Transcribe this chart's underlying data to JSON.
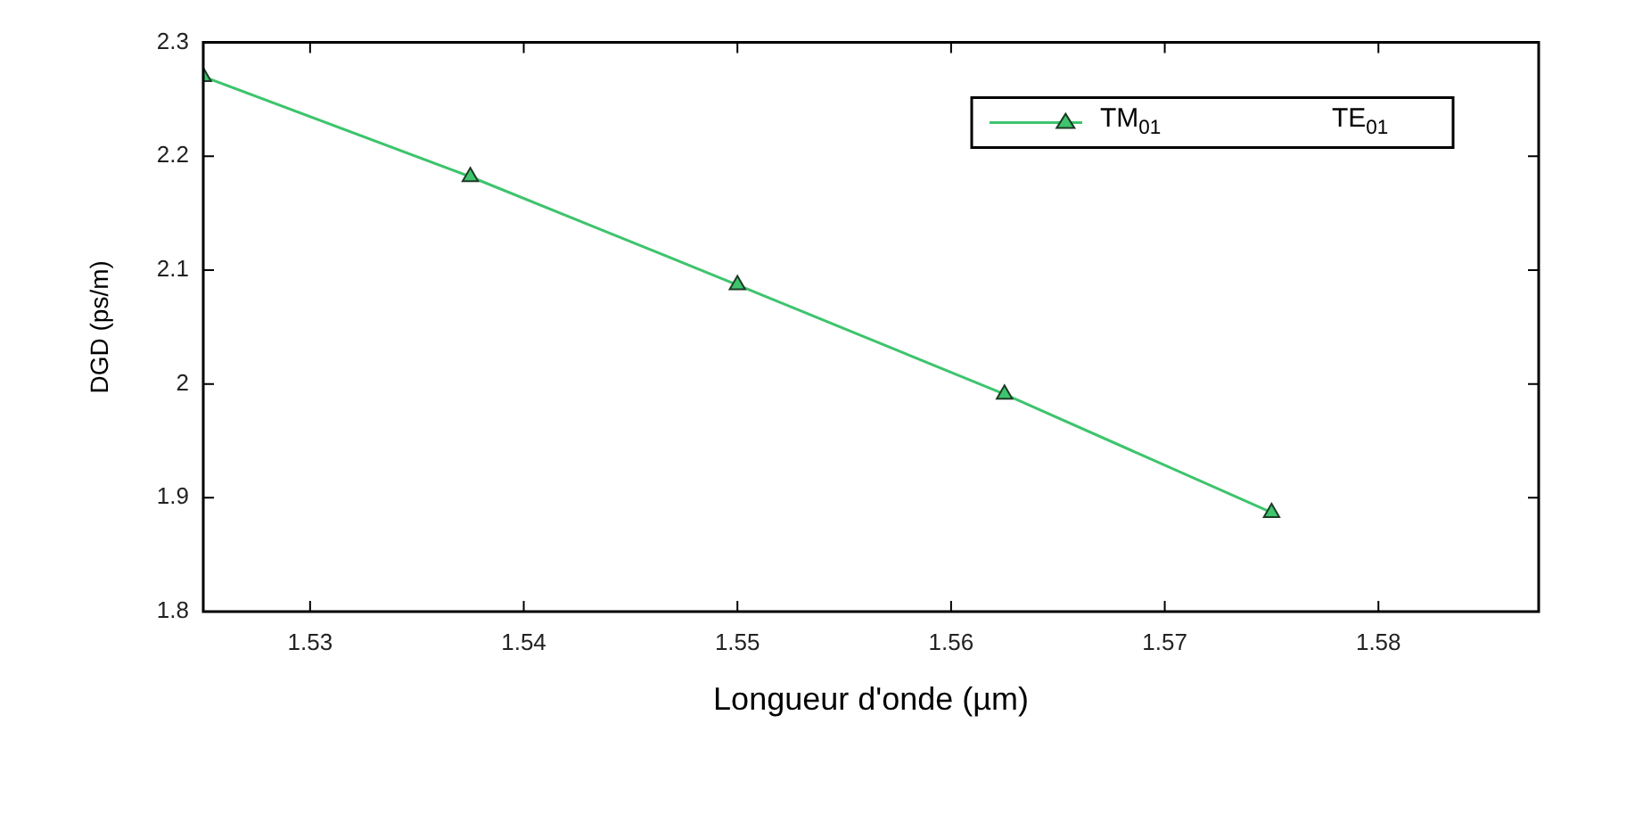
{
  "chart_data": {
    "type": "line",
    "xlabel": "Longueur d'onde (µm)",
    "ylabel": "DGD (ps/m)",
    "x": [
      1.525,
      1.5375,
      1.55,
      1.5625,
      1.575
    ],
    "series": [
      {
        "name": "TM$_{01}$",
        "color": "#3ec46d",
        "values": [
          2.27,
          2.182,
          2.087,
          1.991,
          1.887
        ]
      },
      {
        "name": "TE$_{01}$",
        "values": [
          null,
          null,
          null,
          null,
          null
        ]
      }
    ],
    "xlim": [
      1.525,
      1.5875
    ],
    "xticks": [
      1.53,
      1.54,
      1.55,
      1.56,
      1.57,
      1.58
    ],
    "ylim": [
      1.8,
      2.3
    ],
    "yticks": [
      1.8,
      1.9,
      2,
      2.1,
      2.2,
      2.3
    ],
    "grid": false,
    "legend": "top right",
    "marker": "triangle",
    "line_style": "solid"
  }
}
